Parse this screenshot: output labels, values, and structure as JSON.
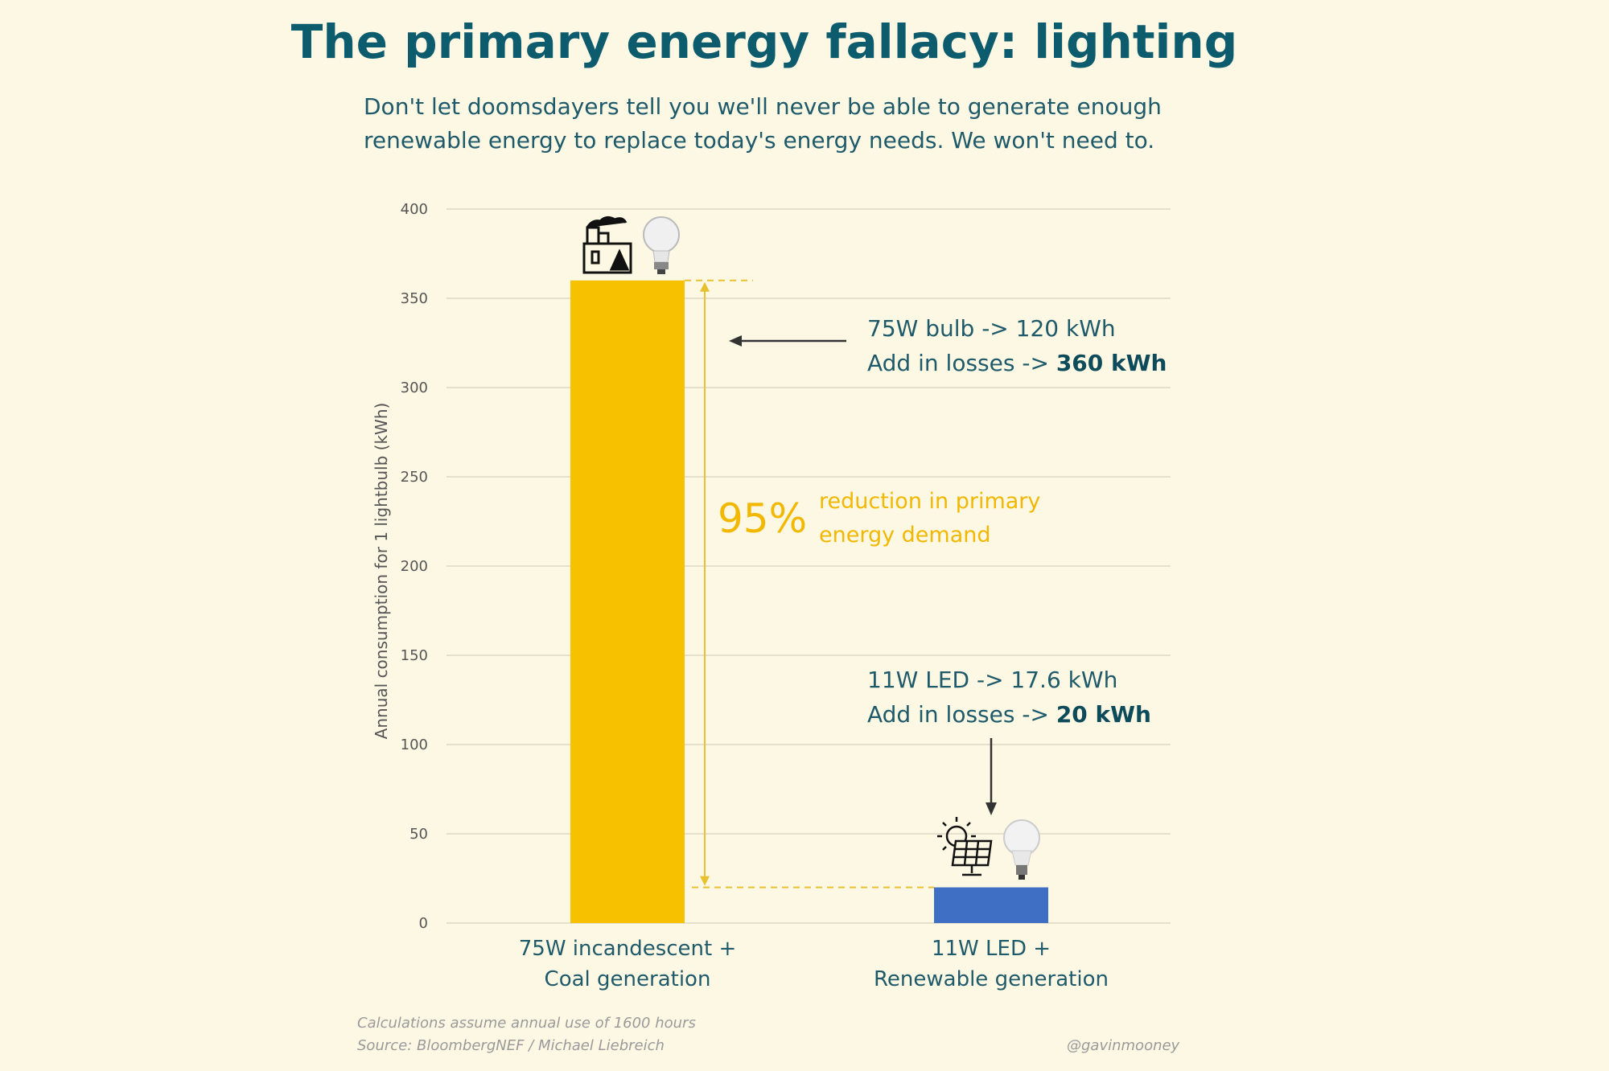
{
  "title": "The primary energy fallacy: lighting",
  "subtitle": "Don't let doomsdayers tell you we'll never be able to generate enough renewable energy to replace today's energy needs. We won't need to.",
  "chart_data": {
    "type": "bar",
    "categories": [
      "75W incandescent + Coal generation",
      "11W LED + Renewable generation"
    ],
    "category_lines": [
      [
        "75W incandescent +",
        "Coal generation"
      ],
      [
        "11W LED +",
        "Renewable generation"
      ]
    ],
    "values": [
      360,
      20
    ],
    "colors": [
      "#f8c100",
      "#3f6fc5"
    ],
    "ylabel": "Annual consumption for 1 lightbulb (kWh)",
    "ylim": [
      0,
      400
    ],
    "yticks": [
      0,
      50,
      100,
      150,
      200,
      250,
      300,
      350,
      400
    ],
    "grid": true,
    "annotations": {
      "incandescent_line1": "75W bulb -> 120 kWh",
      "incandescent_line2_prefix": "Add in losses -> ",
      "incandescent_line2_bold": "360 kWh",
      "led_line1": "11W LED -> 17.6 kWh",
      "led_line2_prefix": "Add in losses -> ",
      "led_line2_bold": "20 kWh",
      "reduction_pct": "95%",
      "reduction_line1": "reduction in primary",
      "reduction_line2": "energy demand"
    }
  },
  "icons": [
    "factory-icon",
    "lightbulb-icon",
    "solar-panel-icon",
    "led-bulb-icon"
  ],
  "footnote_line1": "Calculations assume annual use of 1600 hours",
  "footnote_line2": "Source: BloombergNEF / Michael Liebreich",
  "credit": "@gavinmooney"
}
